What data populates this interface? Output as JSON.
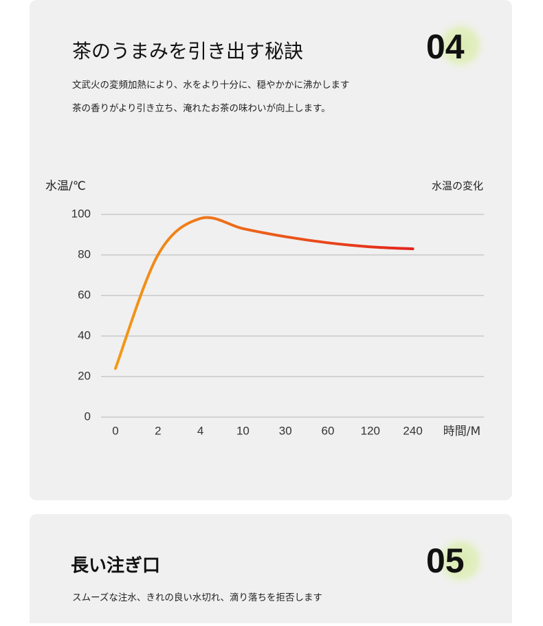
{
  "section1": {
    "number": "04",
    "title": "茶のうまみを引き出す秘訣",
    "lines": [
      "文武火の変頻加熱により、水をより十分に、穏やかかに沸かします",
      "茶の香りがより引き立ち、淹れたお茶の味わいが向上します。"
    ]
  },
  "chart_data": {
    "type": "line",
    "y_label": "水温/℃",
    "x_label": "時間/M",
    "categories": [
      "0",
      "2",
      "4",
      "10",
      "30",
      "60",
      "120",
      "240"
    ],
    "series": [
      {
        "name": "水温の変化",
        "color": "#e5321c",
        "gradient": [
          "#f39a16",
          "#e3231d"
        ],
        "values": [
          24,
          80,
          98,
          93,
          89,
          86,
          84,
          83
        ]
      }
    ],
    "ylim": [
      0,
      100
    ],
    "yticks": [
      0,
      20,
      40,
      60,
      80,
      100
    ],
    "grid": true,
    "legend": "top-right"
  },
  "section2": {
    "number": "05",
    "title": "長い注ぎ口",
    "lines": [
      "スムーズな注水、きれの良い水切れ、滴り落ちを拒否します"
    ]
  }
}
